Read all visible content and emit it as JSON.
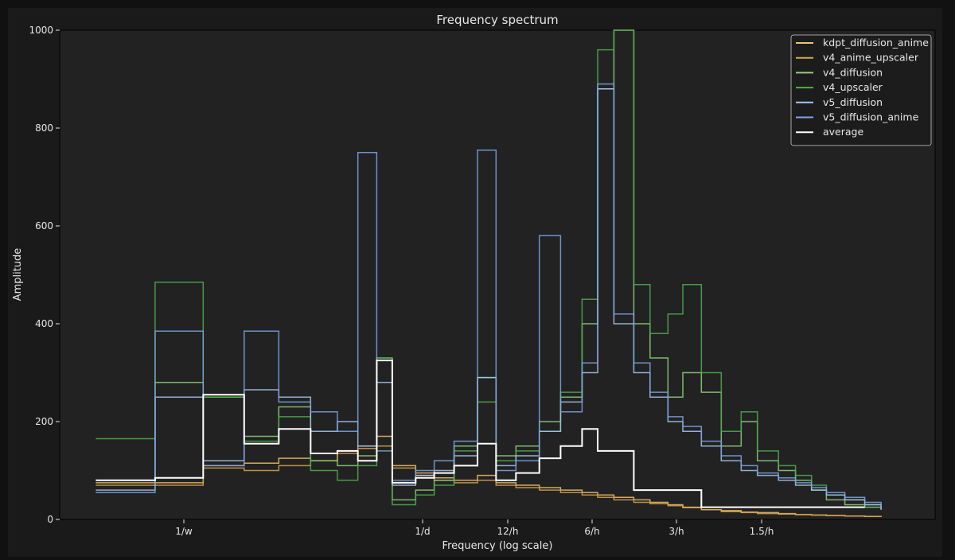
{
  "chart_data": {
    "type": "line",
    "title": "Frequency spectrum",
    "xlabel": "Frequency (log scale)",
    "ylabel": "Amplitude",
    "ylim": [
      0,
      1000
    ],
    "y_ticks": [
      "0",
      "200",
      "400",
      "600",
      "800",
      "1000"
    ],
    "x_ticks": [
      "1/w",
      "1/d",
      "12/h",
      "6/h",
      "3/h",
      "1.5/h"
    ],
    "x_tick_values": [
      0.005952,
      0.041667,
      0.5,
      6,
      3,
      1.5
    ],
    "x_scale": "log",
    "x_range_note": "frequency per hour",
    "legend_position": "top-right",
    "grid": false,
    "series": [
      {
        "name": "kdpt_diffusion_anime",
        "color": "#f2c36b",
        "x": [
          0.0018,
          0.0035,
          0.006,
          0.0095,
          0.014,
          0.02,
          0.027,
          0.034,
          0.042,
          0.05,
          0.065,
          0.08,
          0.1,
          0.13,
          0.16,
          0.2,
          0.26,
          0.33,
          0.42,
          0.5,
          0.6,
          0.75,
          0.9,
          1.1,
          1.3,
          1.6,
          2.0,
          2.5,
          3.0,
          3.8,
          4.6,
          5.5,
          6.5,
          8,
          10,
          12
        ],
        "y": [
          75,
          75,
          110,
          115,
          125,
          120,
          140,
          150,
          170,
          110,
          95,
          85,
          80,
          90,
          75,
          70,
          65,
          60,
          55,
          50,
          45,
          40,
          35,
          30,
          25,
          20,
          18,
          15,
          14,
          12,
          10,
          9,
          8,
          7,
          6,
          5
        ]
      },
      {
        "name": "v4_anime_upscaler",
        "color": "#d9a44e",
        "x": [
          0.0018,
          0.0035,
          0.006,
          0.0095,
          0.014,
          0.02,
          0.027,
          0.034,
          0.042,
          0.05,
          0.065,
          0.08,
          0.1,
          0.13,
          0.16,
          0.2,
          0.26,
          0.33,
          0.42,
          0.5,
          0.6,
          0.75,
          0.9,
          1.1,
          1.3,
          1.6,
          2.0,
          2.5,
          3.0,
          3.8,
          4.6,
          5.5,
          6.5,
          8,
          10,
          12
        ],
        "y": [
          70,
          70,
          105,
          100,
          110,
          120,
          135,
          145,
          150,
          105,
          90,
          80,
          75,
          80,
          70,
          65,
          60,
          55,
          50,
          45,
          40,
          35,
          32,
          28,
          24,
          20,
          16,
          14,
          12,
          11,
          10,
          9,
          8,
          7,
          6,
          5
        ]
      },
      {
        "name": "v4_diffusion",
        "color": "#8fd37a",
        "x": [
          0.0018,
          0.0035,
          0.006,
          0.0095,
          0.014,
          0.02,
          0.027,
          0.034,
          0.042,
          0.05,
          0.065,
          0.08,
          0.1,
          0.13,
          0.16,
          0.2,
          0.26,
          0.33,
          0.42,
          0.5,
          0.6,
          0.75,
          0.9,
          1.1,
          1.3,
          1.6,
          2.0,
          2.5,
          3.0,
          3.8,
          4.6,
          5.5,
          6.5,
          8,
          10,
          12
        ],
        "y": [
          80,
          280,
          250,
          170,
          230,
          120,
          110,
          130,
          330,
          40,
          60,
          80,
          150,
          290,
          130,
          150,
          200,
          250,
          400,
          880,
          1000,
          400,
          330,
          250,
          300,
          260,
          150,
          200,
          120,
          100,
          80,
          60,
          40,
          30,
          25,
          20
        ]
      },
      {
        "name": "v4_upscaler",
        "color": "#4fae4f",
        "x": [
          0.0018,
          0.0035,
          0.006,
          0.0095,
          0.014,
          0.02,
          0.027,
          0.034,
          0.042,
          0.05,
          0.065,
          0.08,
          0.1,
          0.13,
          0.16,
          0.2,
          0.26,
          0.33,
          0.42,
          0.5,
          0.6,
          0.75,
          0.9,
          1.1,
          1.3,
          1.6,
          2.0,
          2.5,
          3.0,
          3.8,
          4.6,
          5.5,
          6.5,
          8,
          10,
          12
        ],
        "y": [
          165,
          485,
          250,
          160,
          210,
          100,
          80,
          110,
          330,
          30,
          50,
          70,
          140,
          240,
          120,
          140,
          180,
          260,
          450,
          960,
          1000,
          480,
          380,
          420,
          480,
          300,
          180,
          220,
          140,
          110,
          90,
          70,
          50,
          40,
          30,
          25
        ]
      },
      {
        "name": "v5_diffusion",
        "color": "#a8c8f0",
        "x": [
          0.0018,
          0.0035,
          0.006,
          0.0095,
          0.014,
          0.02,
          0.027,
          0.034,
          0.042,
          0.05,
          0.065,
          0.08,
          0.1,
          0.13,
          0.16,
          0.2,
          0.26,
          0.33,
          0.42,
          0.5,
          0.6,
          0.75,
          0.9,
          1.1,
          1.3,
          1.6,
          2.0,
          2.5,
          3.0,
          3.8,
          4.6,
          5.5,
          6.5,
          8,
          10,
          12
        ],
        "y": [
          60,
          250,
          120,
          265,
          250,
          180,
          200,
          150,
          280,
          70,
          90,
          100,
          130,
          290,
          110,
          130,
          180,
          240,
          300,
          880,
          400,
          300,
          250,
          200,
          180,
          150,
          120,
          100,
          90,
          80,
          70,
          60,
          50,
          40,
          30,
          20
        ]
      },
      {
        "name": "v5_diffusion_anime",
        "color": "#7ea6e8",
        "x": [
          0.0018,
          0.0035,
          0.006,
          0.0095,
          0.014,
          0.02,
          0.027,
          0.034,
          0.042,
          0.05,
          0.065,
          0.08,
          0.1,
          0.13,
          0.16,
          0.2,
          0.26,
          0.33,
          0.42,
          0.5,
          0.6,
          0.75,
          0.9,
          1.1,
          1.3,
          1.6,
          2.0,
          2.5,
          3.0,
          3.8,
          4.6,
          5.5,
          6.5,
          8,
          10,
          12
        ],
        "y": [
          55,
          385,
          110,
          385,
          240,
          220,
          180,
          750,
          140,
          80,
          100,
          120,
          160,
          755,
          100,
          120,
          580,
          220,
          320,
          890,
          420,
          320,
          260,
          210,
          190,
          160,
          130,
          110,
          95,
          85,
          75,
          65,
          55,
          45,
          35,
          25
        ]
      },
      {
        "name": "average",
        "color": "#ffffff",
        "x": [
          0.0018,
          0.0035,
          0.006,
          0.0095,
          0.014,
          0.02,
          0.027,
          0.034,
          0.042,
          0.05,
          0.065,
          0.08,
          0.1,
          0.13,
          0.16,
          0.2,
          0.26,
          0.33,
          0.42,
          0.5,
          0.6,
          0.75,
          0.9,
          1.1,
          1.3,
          1.6,
          2.0,
          2.5,
          3.0,
          3.8,
          4.6,
          5.5,
          6.5,
          8,
          10
        ],
        "y": [
          80,
          85,
          255,
          155,
          185,
          135,
          140,
          120,
          325,
          75,
          85,
          95,
          110,
          155,
          80,
          95,
          125,
          150,
          185,
          140,
          140,
          60,
          60,
          60,
          60,
          25,
          25,
          25,
          25,
          25,
          25,
          25,
          25,
          25,
          25
        ]
      }
    ]
  }
}
